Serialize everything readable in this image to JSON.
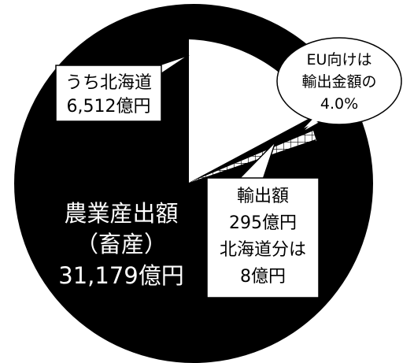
{
  "chart_data": {
    "type": "pie",
    "title": "",
    "units": "億円",
    "slices": [
      {
        "name": "農業産出額（畜産）",
        "value": 31179,
        "color": "#000000"
      },
      {
        "name": "うち北海道",
        "value": 6512,
        "color": "#ffffff",
        "note": "part of livestock output, shown as exploded white wedge"
      },
      {
        "name": "輸出額",
        "value": 295,
        "color": "#ffffff",
        "pattern": "crosshatch"
      },
      {
        "name": "北海道分",
        "value": 8,
        "color": "#000000"
      }
    ],
    "labels": {
      "hokkaido": [
        "うち北海道",
        "6,512億円"
      ],
      "total": [
        "農業産出額",
        "（畜産）",
        "31,179億円"
      ],
      "export": [
        "輸出額",
        "295億円",
        "北海道分は",
        "8億円"
      ],
      "eu": [
        "EU向けは",
        "輸出金額の",
        "4.0%"
      ]
    },
    "eu_share_percent": 4.0
  }
}
